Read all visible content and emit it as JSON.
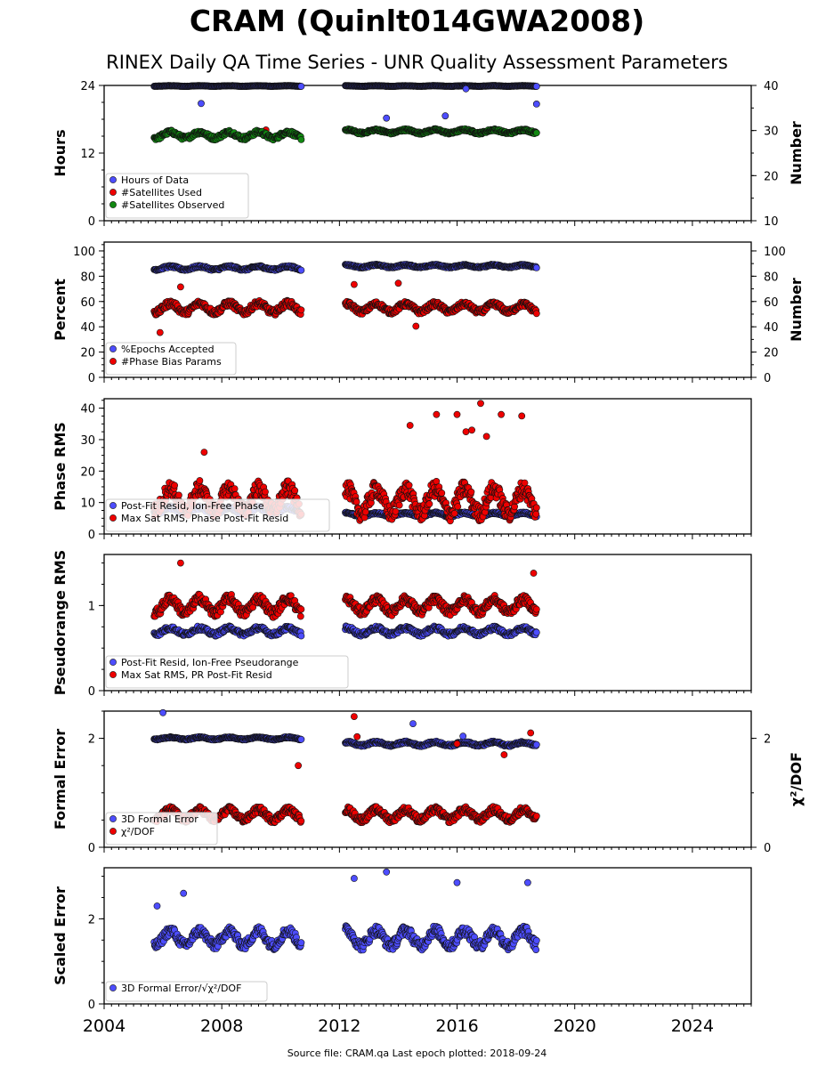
{
  "header": {
    "title": "CRAM (Quinlt014GWA2008)",
    "subtitle": "RINEX Daily QA Time Series - UNR Quality Assessment Parameters"
  },
  "footer": {
    "text": "Source file: CRAM.qa Last epoch plotted: 2018-09-24"
  },
  "colors": {
    "blue": "#4d4dff",
    "red": "#ee0000",
    "green": "#118811",
    "edge": "#111111"
  },
  "chart_data": [
    {
      "type": "scatter",
      "ylabel": "Hours",
      "ylabel2": "Number",
      "xlim": [
        2004,
        2026
      ],
      "ylim": [
        0,
        24
      ],
      "ylim2": [
        10,
        40
      ],
      "yticks": [
        "0",
        "12",
        "24"
      ],
      "yticks2": [
        "10",
        "20",
        "30",
        "40"
      ],
      "legend_position": "lower-left",
      "series": [
        {
          "name": "Hours of Data",
          "color": "blue",
          "axis": "left",
          "segments": [
            {
              "x": [
                2005.7,
                2010.7
              ],
              "center": 23.9,
              "spread": 0.08
            },
            {
              "x": [
                2012.2,
                2018.7
              ],
              "center": 23.9,
              "spread": 0.08
            }
          ],
          "outliers": [
            [
              2007.3,
              20.8
            ],
            [
              2013.6,
              18.2
            ],
            [
              2015.6,
              18.6
            ],
            [
              2016.3,
              23.4
            ],
            [
              2018.7,
              20.7
            ]
          ]
        },
        {
          "name": "#Satellites Used",
          "color": "red",
          "axis": "left",
          "segments": [],
          "outliers": [
            [
              2009.5,
              16.1
            ]
          ]
        },
        {
          "name": "#Satellites Observed",
          "color": "green",
          "axis": "right",
          "segments": [
            {
              "x": [
                2005.7,
                2010.7
              ],
              "center": 29.0,
              "spread": 1.1,
              "min": 26.5
            },
            {
              "x": [
                2012.2,
                2018.7
              ],
              "center": 29.8,
              "spread": 0.6
            }
          ],
          "outliers": []
        }
      ]
    },
    {
      "type": "scatter",
      "ylabel": "Percent",
      "ylabel2": "Number",
      "xlim": [
        2004,
        2026
      ],
      "ylim": [
        0,
        107
      ],
      "ylim2": [
        0,
        107
      ],
      "yticks": [
        "0",
        "20",
        "40",
        "60",
        "80",
        "100"
      ],
      "yticks2": [
        "0",
        "20",
        "40",
        "60",
        "80",
        "100"
      ],
      "legend_position": "lower-left",
      "series": [
        {
          "name": "%Epochs Accepted",
          "color": "blue",
          "axis": "left",
          "segments": [
            {
              "x": [
                2005.7,
                2010.7
              ],
              "center": 86.5,
              "spread": 2.0
            },
            {
              "x": [
                2012.2,
                2018.7
              ],
              "center": 88.0,
              "spread": 1.5
            }
          ],
          "outliers": []
        },
        {
          "name": "#Phase Bias Params",
          "color": "red",
          "axis": "right",
          "segments": [
            {
              "x": [
                2005.7,
                2010.7
              ],
              "center": 55,
              "spread": 6
            },
            {
              "x": [
                2012.2,
                2018.7
              ],
              "center": 55,
              "spread": 5
            }
          ],
          "outliers": [
            [
              2005.9,
              35.5
            ],
            [
              2006.6,
              71.5
            ],
            [
              2012.5,
              73.5
            ],
            [
              2014.0,
              74.5
            ],
            [
              2014.6,
              40.5
            ]
          ]
        }
      ]
    },
    {
      "type": "scatter",
      "ylabel": "Phase RMS",
      "xlim": [
        2004,
        2026
      ],
      "ylim": [
        0,
        43
      ],
      "yticks": [
        "0",
        "10",
        "20",
        "30",
        "40"
      ],
      "legend_position": "lower-left",
      "series": [
        {
          "name": "Post-Fit Resid, Ion-Free Phase",
          "color": "blue",
          "axis": "left",
          "segments": [
            {
              "x": [
                2005.7,
                2010.7
              ],
              "center": 7.5,
              "spread": 1.5
            },
            {
              "x": [
                2012.2,
                2018.7
              ],
              "center": 6.2,
              "spread": 0.8
            }
          ],
          "outliers": []
        },
        {
          "name": "Max Sat RMS, Phase Post-Fit Resid",
          "color": "red",
          "axis": "left",
          "segments": [
            {
              "x": [
                2005.7,
                2010.7
              ],
              "center": 11,
              "spread": 6
            },
            {
              "x": [
                2012.2,
                2018.7
              ],
              "center": 10.5,
              "spread": 6.5
            }
          ],
          "outliers": [
            [
              2007.4,
              26
            ],
            [
              2014.4,
              34.5
            ],
            [
              2015.3,
              38
            ],
            [
              2016.0,
              38
            ],
            [
              2016.3,
              32.5
            ],
            [
              2016.8,
              41.5
            ],
            [
              2017.0,
              31
            ],
            [
              2017.5,
              38
            ],
            [
              2018.2,
              37.5
            ],
            [
              2016.5,
              33
            ]
          ]
        }
      ]
    },
    {
      "type": "scatter",
      "ylabel": "Pseudorange RMS",
      "xlim": [
        2004,
        2026
      ],
      "ylim": [
        0,
        1.6
      ],
      "yticks": [
        "0",
        "1"
      ],
      "legend_position": "lower-left",
      "series": [
        {
          "name": "Post-Fit Resid, Ion-Free Pseudorange",
          "color": "blue",
          "axis": "left",
          "segments": [
            {
              "x": [
                2005.7,
                2010.7
              ],
              "center": 0.7,
              "spread": 0.06
            },
            {
              "x": [
                2012.2,
                2018.7
              ],
              "center": 0.7,
              "spread": 0.06
            }
          ],
          "outliers": []
        },
        {
          "name": "Max Sat RMS, PR Post-Fit Resid",
          "color": "red",
          "axis": "left",
          "segments": [
            {
              "x": [
                2005.7,
                2010.7
              ],
              "center": 1.0,
              "spread": 0.14
            },
            {
              "x": [
                2012.2,
                2018.7
              ],
              "center": 1.0,
              "spread": 0.12
            }
          ],
          "outliers": [
            [
              2006.6,
              1.5
            ],
            [
              2018.6,
              1.38
            ]
          ]
        }
      ]
    },
    {
      "type": "scatter",
      "ylabel": "Formal Error",
      "ylabel2": "χ²/DOF",
      "xlim": [
        2004,
        2026
      ],
      "ylim": [
        0,
        2.5
      ],
      "ylim2": [
        0,
        2.5
      ],
      "yticks": [
        "0",
        "2"
      ],
      "yticks2": [
        "0",
        "2"
      ],
      "legend_position": "lower-left",
      "series": [
        {
          "name": "3D Formal Error",
          "color": "blue",
          "axis": "left",
          "segments": [
            {
              "x": [
                2005.7,
                2010.7
              ],
              "center": 2.0,
              "spread": 0.03
            },
            {
              "x": [
                2012.2,
                2018.7
              ],
              "center": 1.9,
              "spread": 0.05
            }
          ],
          "outliers": [
            [
              2006.0,
              2.47
            ],
            [
              2014.5,
              2.27
            ],
            [
              2016.2,
              2.04
            ]
          ]
        },
        {
          "name": "χ²/DOF",
          "color": "red",
          "axis": "right",
          "segments": [
            {
              "x": [
                2005.7,
                2010.7
              ],
              "center": 0.6,
              "spread": 0.15,
              "min": 0.45
            },
            {
              "x": [
                2012.2,
                2018.7
              ],
              "center": 0.6,
              "spread": 0.15,
              "min": 0.45
            }
          ],
          "outliers": [
            [
              2012.5,
              2.4
            ],
            [
              2012.6,
              2.03
            ],
            [
              2018.5,
              2.1
            ],
            [
              2010.6,
              1.5
            ],
            [
              2016.0,
              1.9
            ],
            [
              2017.6,
              1.7
            ]
          ]
        }
      ]
    },
    {
      "type": "scatter",
      "ylabel": "Scaled Error",
      "xlim": [
        2004,
        2026
      ],
      "ylim": [
        0,
        3.2
      ],
      "yticks": [
        "0",
        "2"
      ],
      "xticks": [
        "2004",
        "2008",
        "2012",
        "2016",
        "2020",
        "2024"
      ],
      "legend_position": "lower-left",
      "series": [
        {
          "name": "3D Formal Error/√χ²/DOF",
          "color": "blue",
          "axis": "left",
          "segments": [
            {
              "x": [
                2005.7,
                2010.7
              ],
              "center": 1.55,
              "spread": 0.28,
              "min": 1.2
            },
            {
              "x": [
                2012.2,
                2018.7
              ],
              "center": 1.55,
              "spread": 0.3,
              "min": 1.1
            }
          ],
          "outliers": [
            [
              2005.8,
              2.3
            ],
            [
              2012.5,
              2.95
            ],
            [
              2013.6,
              3.1
            ],
            [
              2016.0,
              2.85
            ],
            [
              2018.4,
              2.85
            ],
            [
              2006.7,
              2.6
            ]
          ]
        }
      ]
    }
  ]
}
